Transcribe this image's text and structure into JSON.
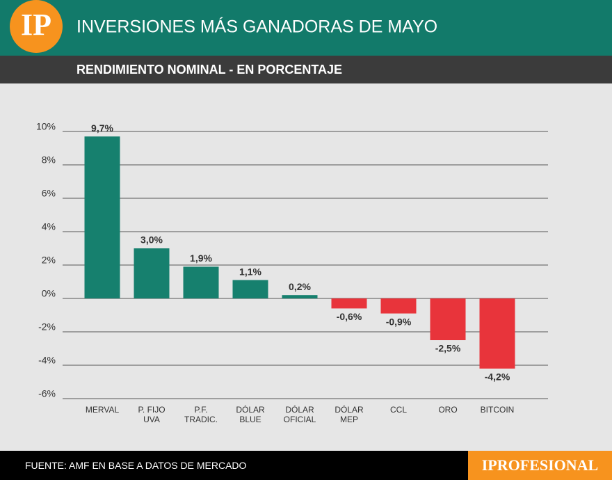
{
  "header": {
    "logo": "IP"
  },
  "chart_data": {
    "type": "bar",
    "title": "INVERSIONES MÁS GANADORAS DE MAYO",
    "subtitle": "RENDIMIENTO NOMINAL - EN PORCENTAJE",
    "categories": [
      "MERVAL",
      "P. FIJO\nUVA",
      "P.F.\nTRADIC.",
      "DÓLAR\nBLUE",
      "DÓLAR\nOFICIAL",
      "DÓLAR\nMEP",
      "CCL",
      "ORO",
      "BITCOIN"
    ],
    "values": [
      9.7,
      3.0,
      1.9,
      1.1,
      0.2,
      -0.6,
      -0.9,
      -2.5,
      -4.2
    ],
    "value_labels": [
      "9,7%",
      "3,0%",
      "1,9%",
      "1,1%",
      "0,2%",
      "-0,6%",
      "-0,9%",
      "-2,5%",
      "-4,2%"
    ],
    "colors": [
      "#16806e",
      "#16806e",
      "#16806e",
      "#16806e",
      "#16806e",
      "#e8343b",
      "#e8343b",
      "#e8343b",
      "#e8343b"
    ],
    "ylim": [
      -6,
      10
    ],
    "yticks": [
      {
        "value": -6,
        "label": "-6%"
      },
      {
        "value": -4,
        "label": "-4%"
      },
      {
        "value": -2,
        "label": "-2%"
      },
      {
        "value": 0,
        "label": "0%"
      },
      {
        "value": 2,
        "label": "2%"
      },
      {
        "value": 4,
        "label": "4%"
      },
      {
        "value": 6,
        "label": "6%"
      },
      {
        "value": 8,
        "label": "8%"
      },
      {
        "value": 10,
        "label": "10%"
      }
    ],
    "grid": true
  },
  "footer": {
    "source": "FUENTE: AMF EN BASE A DATOS DE MERCADO",
    "brand": "IPROFESIONAL"
  }
}
